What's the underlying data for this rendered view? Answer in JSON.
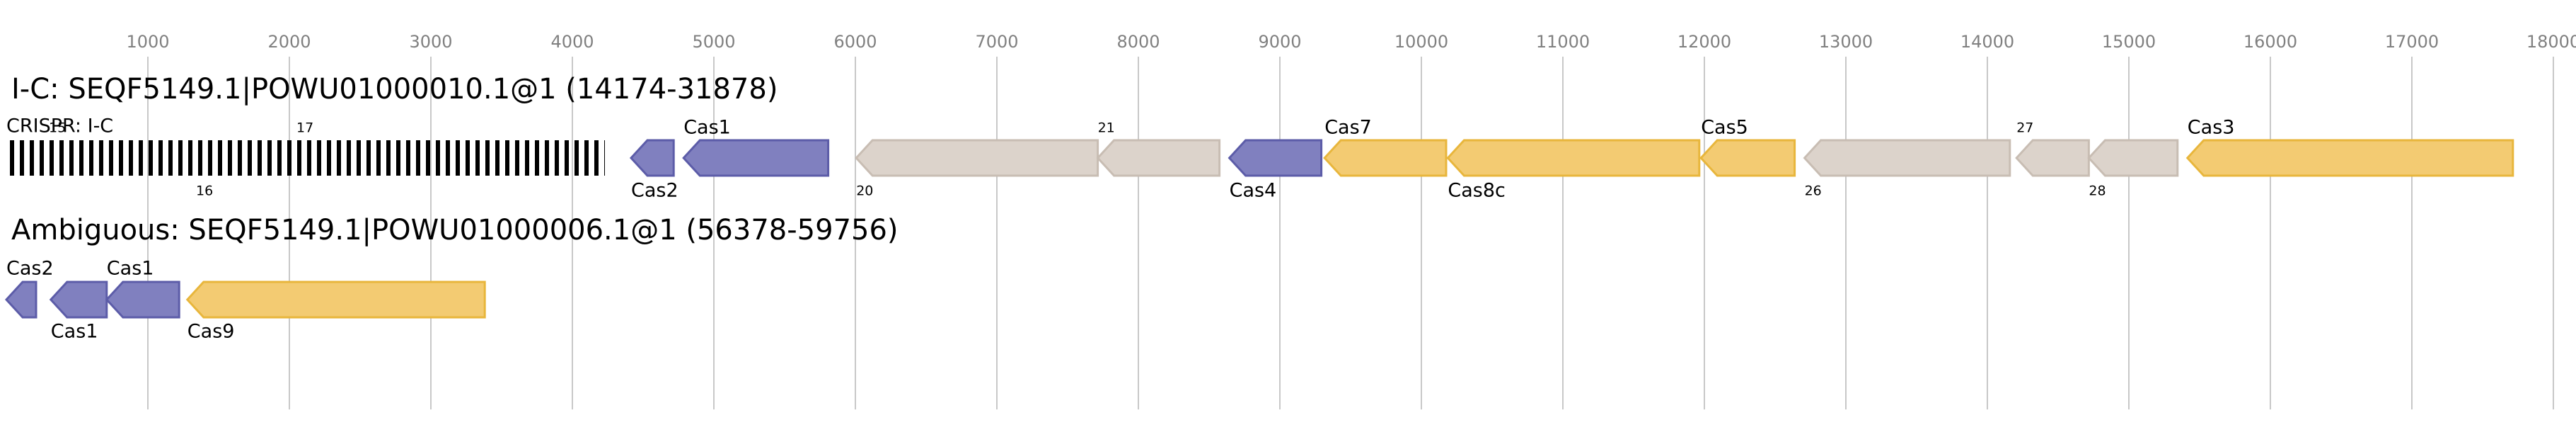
{
  "chart_data": {
    "type": "gene_map",
    "xlim": [
      0,
      18160
    ],
    "xticks": [
      1000,
      2000,
      3000,
      4000,
      5000,
      6000,
      7000,
      8000,
      9000,
      10000,
      11000,
      12000,
      13000,
      14000,
      15000,
      16000,
      17000,
      18000
    ],
    "grid": true,
    "palette": {
      "adaptation": {
        "fill": "#8080bf",
        "stroke": "#5c5ca8"
      },
      "effector": {
        "fill": "#f3cb72",
        "stroke": "#e8b63c"
      },
      "other": {
        "fill": "#dcd3cb",
        "stroke": "#c8bdb3"
      }
    },
    "tracks": [
      {
        "title": "I-C: SEQF5149.1|POWU01000010.1@1 (14174-31878)",
        "crispr": {
          "label": "CRISPR: I-C",
          "start": 0,
          "end": 4230,
          "annotations": [
            {
              "text": "15",
              "x": 300,
              "side": "above"
            },
            {
              "text": "16",
              "x": 1340,
              "side": "below"
            },
            {
              "text": "17",
              "x": 2050,
              "side": "above"
            }
          ]
        },
        "genes": [
          {
            "label": "Cas2",
            "start": 4415,
            "end": 4716,
            "strand": "-",
            "family": "adaptation",
            "side": "below"
          },
          {
            "label": "Cas1",
            "start": 4786,
            "end": 5808,
            "strand": "-",
            "family": "adaptation",
            "side": "above"
          },
          {
            "label": "20",
            "start": 6006,
            "end": 7713,
            "strand": "-",
            "family": "other",
            "side": "below"
          },
          {
            "label": "21",
            "start": 7713,
            "end": 8573,
            "strand": "-",
            "family": "other",
            "side": "above"
          },
          {
            "label": "Cas4",
            "start": 8643,
            "end": 9293,
            "strand": "-",
            "family": "adaptation",
            "side": "below"
          },
          {
            "label": "Cas7",
            "start": 9316,
            "end": 10175,
            "strand": "-",
            "family": "effector",
            "side": "above"
          },
          {
            "label": "Cas8c",
            "start": 10187,
            "end": 11964,
            "strand": "-",
            "family": "effector",
            "side": "below"
          },
          {
            "label": "Cas5",
            "start": 11976,
            "end": 12638,
            "strand": "-",
            "family": "effector",
            "side": "above"
          },
          {
            "label": "26",
            "start": 12708,
            "end": 14159,
            "strand": "-",
            "family": "other",
            "side": "below"
          },
          {
            "label": "27",
            "start": 14206,
            "end": 14717,
            "strand": "-",
            "family": "other",
            "side": "above"
          },
          {
            "label": "28",
            "start": 14717,
            "end": 15344,
            "strand": "-",
            "family": "other",
            "side": "below"
          },
          {
            "label": "Cas3",
            "start": 15414,
            "end": 17714,
            "strand": "-",
            "family": "effector",
            "side": "above"
          }
        ]
      },
      {
        "title": "Ambiguous: SEQF5149.1|POWU01000006.1@1 (56378-59756)",
        "genes": [
          {
            "label": "Cas2",
            "start": 0,
            "end": 210,
            "strand": "-",
            "family": "adaptation",
            "side": "above"
          },
          {
            "label": "Cas1",
            "start": 314,
            "end": 709,
            "strand": "-",
            "family": "adaptation",
            "side": "below"
          },
          {
            "label": "Cas1",
            "start": 709,
            "end": 1221,
            "strand": "-",
            "family": "adaptation",
            "side": "above"
          },
          {
            "label": "Cas9",
            "start": 1279,
            "end": 3381,
            "strand": "-",
            "family": "effector",
            "side": "below"
          }
        ]
      }
    ]
  }
}
